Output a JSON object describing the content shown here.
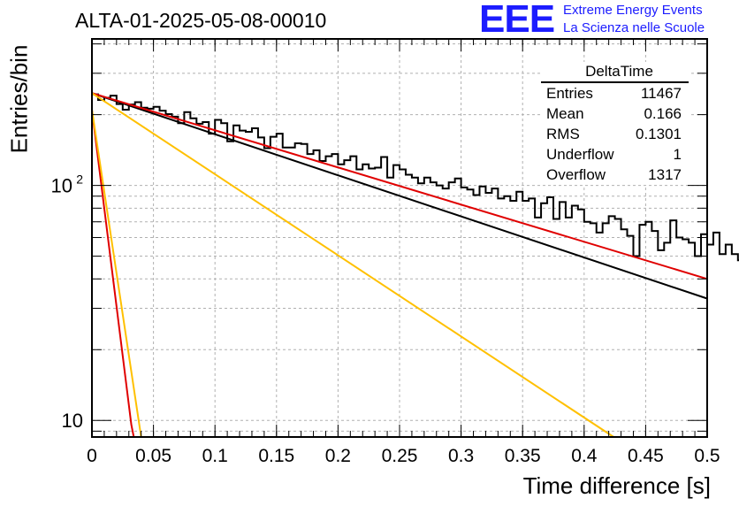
{
  "header": {
    "title": "ALTA-01-2025-05-08-00010"
  },
  "logo": {
    "mark": "EEE",
    "line1": "Extreme Energy Events",
    "line2": "La Scienza nelle Scuole",
    "color": "#1c1cff"
  },
  "stats_box": {
    "title": "DeltaTime",
    "rows": [
      {
        "label": "Entries",
        "value": "11467"
      },
      {
        "label": "Mean",
        "value": "0.166"
      },
      {
        "label": "RMS",
        "value": "0.1301"
      },
      {
        "label": "Underflow",
        "value": "1"
      },
      {
        "label": "Overflow",
        "value": "1317"
      }
    ]
  },
  "chart_data": {
    "type": "line",
    "title": "ALTA-01-2025-05-08-00010",
    "xlabel": "Time difference [s]",
    "ylabel": "Entries/bin",
    "xlim": [
      0,
      0.5
    ],
    "ylim": [
      8.5,
      420
    ],
    "yscale": "log",
    "grid": true,
    "x_ticks": [
      "0",
      "0.05",
      "0.1",
      "0.15",
      "0.2",
      "0.25",
      "0.3",
      "0.35",
      "0.4",
      "0.45",
      "0.5"
    ],
    "y_ticks": [
      {
        "value": 10,
        "label": "10"
      },
      {
        "value": 100,
        "label": "10",
        "exponent": "2"
      }
    ],
    "histogram": {
      "bin_width": 0.005,
      "color": "#000000",
      "values": [
        244,
        231,
        236,
        241,
        222,
        210,
        221,
        226,
        214,
        212,
        216,
        208,
        201,
        196,
        184,
        205,
        193,
        183,
        186,
        166,
        190,
        184,
        154,
        180,
        171,
        169,
        175,
        160,
        144,
        161,
        166,
        145,
        145,
        151,
        150,
        136,
        141,
        127,
        133,
        136,
        123,
        128,
        133,
        117,
        123,
        118,
        119,
        132,
        108,
        122,
        117,
        111,
        108,
        102,
        108,
        103,
        100,
        97,
        103,
        107,
        98,
        96,
        91,
        99,
        93,
        97,
        88,
        90,
        86,
        94,
        86,
        88,
        73,
        84,
        89,
        72,
        85,
        73,
        82,
        79,
        70,
        69,
        63,
        69,
        74,
        72,
        65,
        61,
        50,
        68,
        70,
        64,
        53,
        57,
        71,
        60,
        59,
        57,
        50,
        62,
        56,
        63,
        51,
        56,
        51,
        48,
        53,
        51,
        45,
        53,
        48,
        44,
        51,
        40,
        48,
        43,
        49,
        53,
        44,
        44,
        43,
        41,
        38,
        31,
        42,
        44,
        41,
        39,
        41,
        37,
        39,
        40,
        33,
        40,
        35,
        34,
        33,
        32,
        31,
        37,
        31,
        34,
        39,
        30,
        33,
        30,
        32,
        34,
        28,
        32,
        29,
        36,
        32,
        30,
        29,
        33,
        30,
        28,
        29,
        30,
        28,
        27,
        29,
        26,
        28,
        27,
        30,
        28,
        27,
        28,
        26,
        25,
        28,
        27,
        28,
        25,
        27,
        28,
        26,
        27,
        25,
        28,
        26,
        25,
        28,
        27,
        26,
        17,
        24,
        27,
        25,
        24,
        26,
        25,
        24,
        23,
        22,
        26,
        24,
        25
      ]
    },
    "series": [
      {
        "color": "#000000",
        "points": [
          [
            0,
            247
          ],
          [
            0.5,
            33
          ]
        ]
      },
      {
        "color": "#e00000",
        "points": [
          [
            0,
            247
          ],
          [
            0.5,
            40
          ]
        ]
      },
      {
        "color": "#e00000",
        "points": [
          [
            0,
            210
          ],
          [
            0.032,
            9.6
          ],
          [
            0.034,
            8.5
          ]
        ]
      },
      {
        "color": "#ffc000",
        "points": [
          [
            0,
            247
          ],
          [
            0.424,
            8.5
          ]
        ]
      },
      {
        "color": "#ffc000",
        "points": [
          [
            0,
            210
          ],
          [
            0.04,
            8.5
          ]
        ]
      }
    ]
  }
}
